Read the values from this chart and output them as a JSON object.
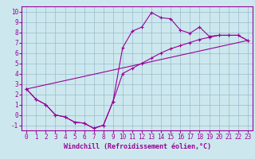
{
  "xlabel": "Windchill (Refroidissement éolien,°C)",
  "bg_color": "#cce8ee",
  "line_color": "#990099",
  "grid_color": "#99bbcc",
  "line1_x": [
    0,
    1,
    2,
    3,
    4,
    5,
    6,
    7,
    8,
    9,
    10,
    11,
    12,
    13,
    14,
    15,
    16,
    17,
    18,
    19,
    20,
    21,
    22,
    23
  ],
  "line1_y": [
    2.5,
    1.5,
    1.0,
    0.0,
    -0.2,
    -0.7,
    -0.8,
    -1.3,
    -1.0,
    1.3,
    6.5,
    8.1,
    8.5,
    9.9,
    9.4,
    9.3,
    8.2,
    7.9,
    8.5,
    7.6,
    7.7,
    7.7,
    7.7,
    7.2
  ],
  "line2_x": [
    0,
    1,
    2,
    3,
    4,
    5,
    6,
    7,
    8,
    9,
    10,
    11,
    12,
    13,
    14,
    15,
    16,
    17,
    18,
    19,
    20,
    21,
    22,
    23
  ],
  "line2_y": [
    2.5,
    1.5,
    1.0,
    0.0,
    -0.2,
    -0.7,
    -0.8,
    -1.3,
    -1.0,
    1.3,
    4.0,
    4.5,
    5.0,
    5.5,
    6.0,
    6.4,
    6.7,
    7.0,
    7.3,
    7.5,
    7.7,
    7.7,
    7.7,
    7.2
  ],
  "line3_x": [
    0,
    23
  ],
  "line3_y": [
    2.5,
    7.2
  ],
  "xlim": [
    -0.5,
    23.5
  ],
  "ylim": [
    -1.5,
    10.5
  ],
  "yticks": [
    -1,
    0,
    1,
    2,
    3,
    4,
    5,
    6,
    7,
    8,
    9,
    10
  ],
  "xticks": [
    0,
    1,
    2,
    3,
    4,
    5,
    6,
    7,
    8,
    9,
    10,
    11,
    12,
    13,
    14,
    15,
    16,
    17,
    18,
    19,
    20,
    21,
    22,
    23
  ],
  "tick_fontsize": 5.5,
  "xlabel_fontsize": 6.0
}
